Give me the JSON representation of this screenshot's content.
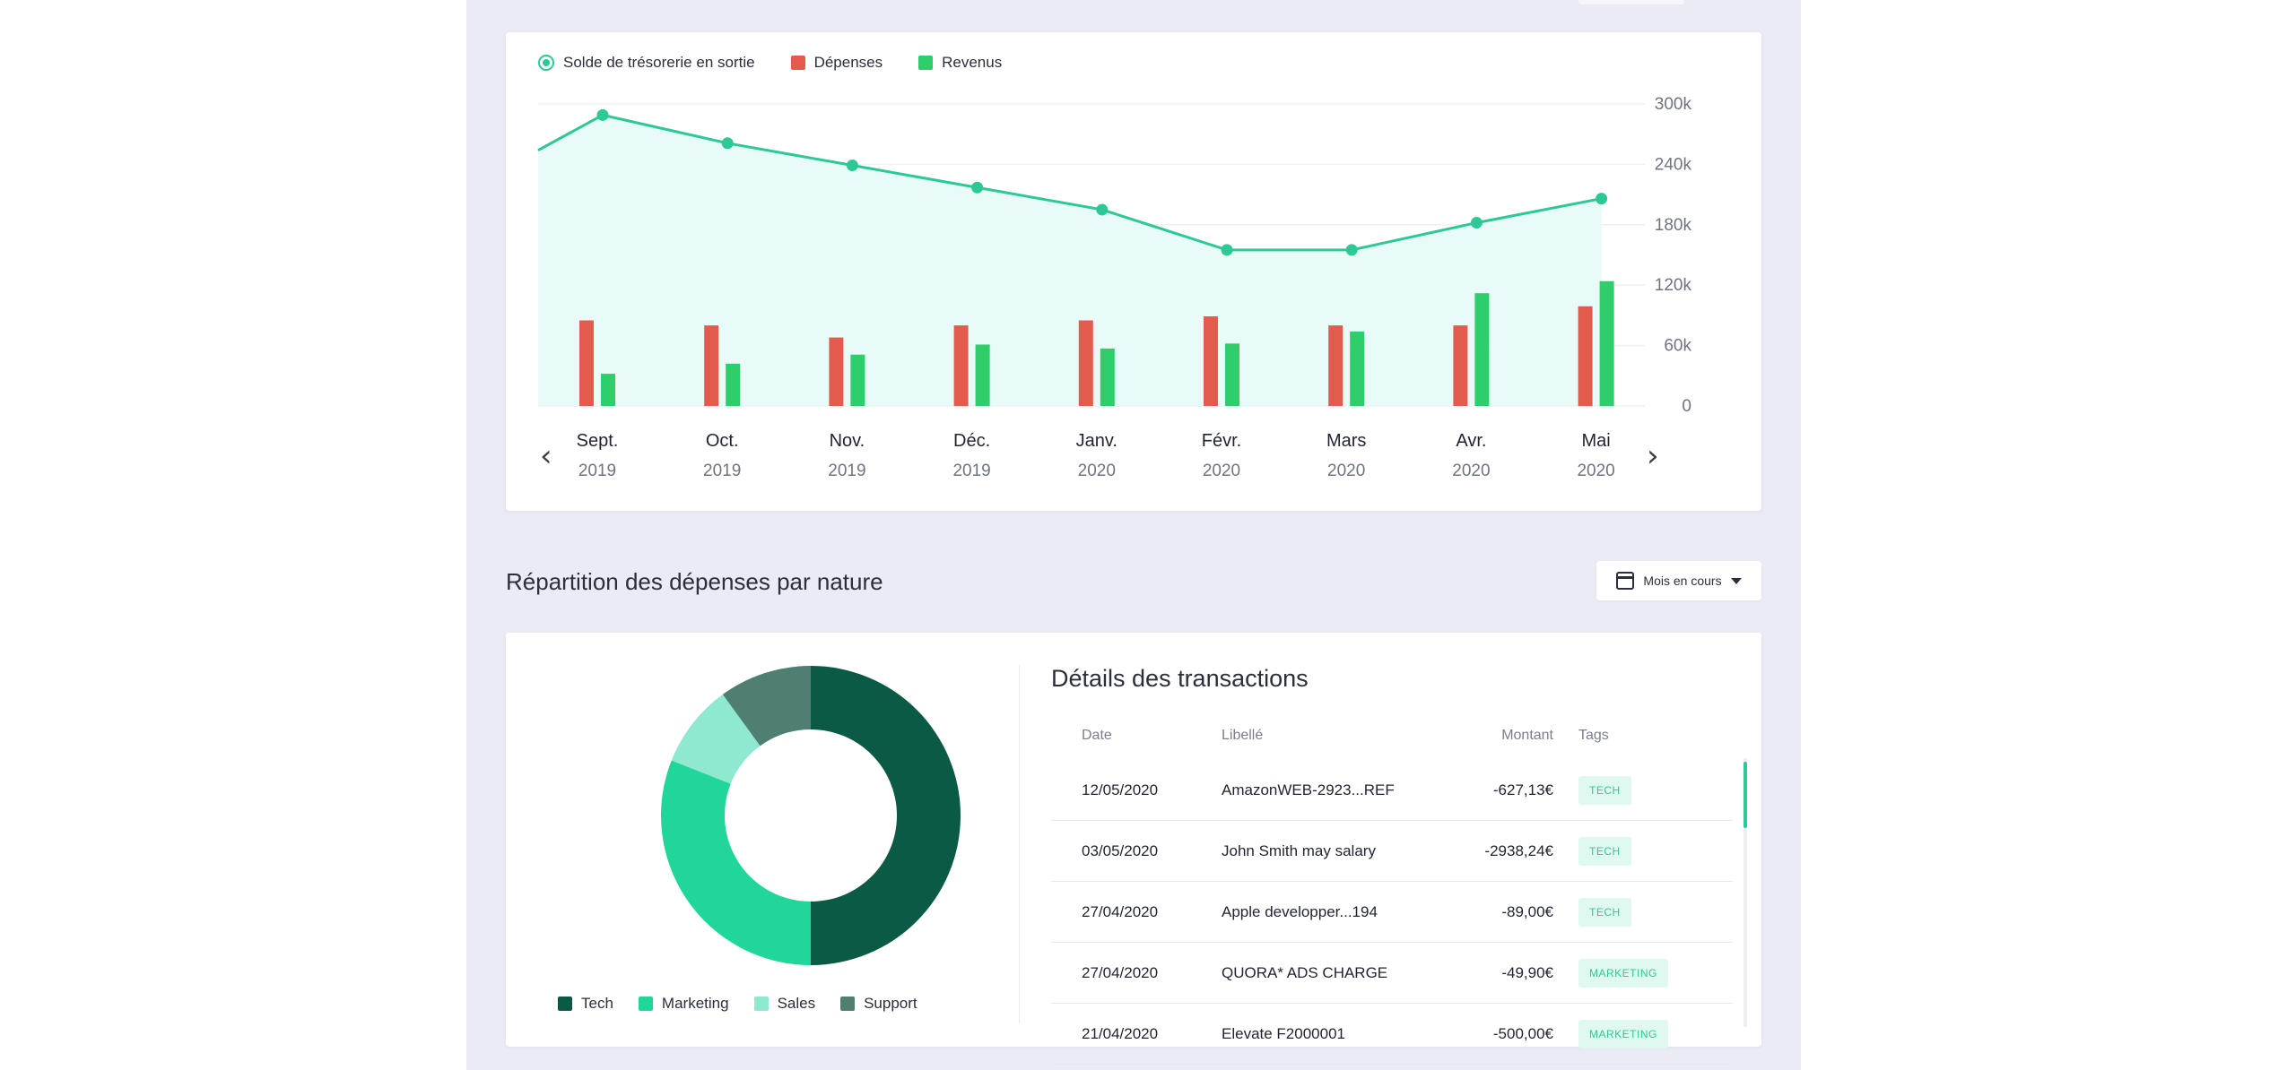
{
  "colors": {
    "line": "#2cc997",
    "area": "#e6fbf8",
    "depenses": "#e35b4d",
    "revenus": "#2ecf6b",
    "tech": "#0b5a46",
    "marketing": "#20d69b",
    "sales": "#8ee9d0",
    "support": "#4f7f72",
    "tag_bg": "#dff8f0",
    "tag_text": "#2cc997"
  },
  "chart_legend": {
    "solde": "Solde de trésorerie en sortie",
    "depenses": "Dépenses",
    "revenus": "Revenus"
  },
  "chart_data": {
    "type": "bar",
    "categories": [
      "Sept.",
      "Oct.",
      "Nov.",
      "Déc.",
      "Janv.",
      "Févr.",
      "Mars",
      "Avr.",
      "Mai"
    ],
    "years": [
      "2019",
      "2019",
      "2019",
      "2019",
      "2020",
      "2020",
      "2020",
      "2020",
      "2020"
    ],
    "series": [
      {
        "name": "Dépenses",
        "type": "bar",
        "values": [
          85000,
          80000,
          68000,
          80000,
          85000,
          89000,
          80000,
          80000,
          99000
        ]
      },
      {
        "name": "Revenus",
        "type": "bar",
        "values": [
          32000,
          42000,
          51000,
          61000,
          57000,
          62000,
          74000,
          112000,
          124000
        ]
      },
      {
        "name": "Solde de trésorerie en sortie",
        "type": "line",
        "values": [
          289000,
          261000,
          239000,
          217000,
          195000,
          155000,
          155000,
          182000,
          206000
        ],
        "start_value": 254000
      }
    ],
    "yticks": [
      "300k",
      "240k",
      "180k",
      "120k",
      "60k",
      "0"
    ],
    "ylim": [
      0,
      300000
    ],
    "grid": true,
    "legend_position": "top-left",
    "y_axis_side": "right"
  },
  "nav": {
    "prev": "‹",
    "next": "›"
  },
  "section": {
    "title": "Répartition des dépenses par nature",
    "period_label": "Mois en cours",
    "period_icon": "calendar-icon"
  },
  "donut": {
    "type": "pie",
    "slices": [
      {
        "name": "Tech",
        "value": 50
      },
      {
        "name": "Marketing",
        "value": 31
      },
      {
        "name": "Sales",
        "value": 9
      },
      {
        "name": "Support",
        "value": 10
      }
    ]
  },
  "transactions": {
    "title": "Détails des transactions",
    "headers": {
      "date": "Date",
      "label": "Libellé",
      "amount": "Montant",
      "tags": "Tags"
    },
    "rows": [
      {
        "date": "12/05/2020",
        "label": "AmazonWEB-2923...REF",
        "amount": "-627,13€",
        "tag": "TECH"
      },
      {
        "date": "03/05/2020",
        "label": "John Smith may salary",
        "amount": "-2938,24€",
        "tag": "TECH"
      },
      {
        "date": "27/04/2020",
        "label": "Apple developper...194",
        "amount": "-89,00€",
        "tag": "TECH"
      },
      {
        "date": "27/04/2020",
        "label": "QUORA* ADS CHARGE",
        "amount": "-49,90€",
        "tag": "MARKETING"
      },
      {
        "date": "21/04/2020",
        "label": "Elevate F2000001",
        "amount": "-500,00€",
        "tag": "MARKETING"
      }
    ]
  }
}
